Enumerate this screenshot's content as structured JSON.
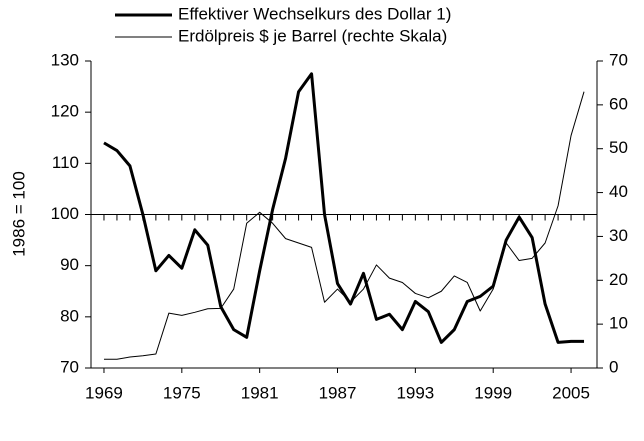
{
  "chart_data": {
    "type": "line",
    "legend_entries": [
      "Effektiver Wechselkurs des Dollar 1)",
      "Erdölpreis $ je Barrel (rechte Skala)"
    ],
    "ylabel": "1986 = 100",
    "x": [
      1969,
      1970,
      1971,
      1972,
      1973,
      1974,
      1975,
      1976,
      1977,
      1978,
      1979,
      1980,
      1981,
      1982,
      1983,
      1984,
      1985,
      1986,
      1987,
      1988,
      1989,
      1990,
      1991,
      1992,
      1993,
      1994,
      1995,
      1996,
      1997,
      1998,
      1999,
      2000,
      2001,
      2002,
      2003,
      2004,
      2005,
      2006
    ],
    "series": [
      {
        "name": "Effektiver Wechselkurs des Dollar 1)",
        "color": "#000000",
        "width": 3,
        "axis": "y",
        "values": [
          114,
          112.5,
          109.5,
          100,
          89,
          92,
          89.5,
          97,
          94,
          82,
          77.5,
          76,
          89,
          101,
          111,
          124,
          127.5,
          100,
          86.5,
          82.5,
          88.5,
          79.5,
          80.5,
          77.5,
          83,
          81,
          75,
          77.5,
          83,
          84,
          86,
          95,
          99.5,
          95.5,
          82.5,
          75,
          75.2,
          75.2
        ]
      },
      {
        "name": "Erdölpreis $ je Barrel (rechte Skala)",
        "color": "#000000",
        "width": 1,
        "axis": "y2",
        "values": [
          2,
          2,
          2.5,
          2.8,
          3.2,
          12.5,
          12,
          12.7,
          13.5,
          13.6,
          18,
          33,
          35.5,
          33,
          29.5,
          28.5,
          27.5,
          15,
          18,
          15,
          18,
          23.5,
          20.5,
          19.5,
          17,
          16,
          17.5,
          21,
          19.5,
          13,
          18,
          28.5,
          24.5,
          25,
          28.5,
          37,
          53,
          63
        ]
      }
    ],
    "xlim": [
      1968,
      2007
    ],
    "xticks": [
      1969,
      1975,
      1981,
      1987,
      1993,
      1999,
      2005
    ],
    "ylim": [
      70,
      130
    ],
    "yticks": [
      70,
      80,
      90,
      100,
      110,
      120,
      130
    ],
    "y2lim": [
      0,
      70
    ],
    "y2ticks": [
      0,
      10,
      20,
      30,
      40,
      50,
      60,
      70
    ],
    "reference_line": 100
  }
}
